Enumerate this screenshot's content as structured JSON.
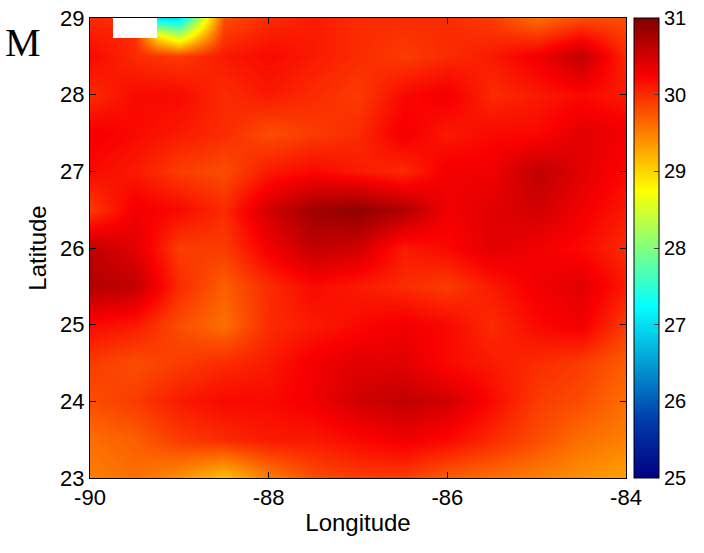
{
  "chart_data": {
    "type": "heatmap",
    "panel_label": "M",
    "x_label": "Longitude",
    "y_label": "Latitude",
    "x": [
      -90,
      -89.5,
      -89,
      -88.5,
      -88,
      -87.5,
      -87,
      -86.5,
      -86,
      -85.5,
      -85,
      -84.5,
      -84
    ],
    "y": [
      23,
      23.5,
      24,
      24.5,
      25,
      25.5,
      26,
      26.5,
      27,
      27.5,
      28,
      28.5,
      29
    ],
    "cells": [
      [
        29.5,
        29.6,
        29.4,
        29.1,
        29.5,
        29.8,
        29.9,
        29.9,
        29.7,
        29.6,
        29.5,
        29.4,
        29.3
      ],
      [
        29.6,
        29.7,
        29.9,
        30.0,
        30.1,
        30.1,
        30.2,
        30.3,
        30.2,
        30.0,
        29.8,
        29.6,
        29.5
      ],
      [
        29.8,
        29.9,
        30.1,
        30.2,
        30.2,
        30.3,
        30.5,
        30.6,
        30.5,
        30.2,
        29.9,
        29.8,
        29.6
      ],
      [
        29.9,
        29.8,
        29.9,
        30.0,
        30.1,
        30.3,
        30.4,
        30.4,
        30.2,
        30.1,
        30.0,
        29.9,
        29.7
      ],
      [
        30.2,
        30.1,
        29.8,
        29.6,
        30.0,
        30.1,
        30.2,
        30.3,
        30.2,
        30.0,
        30.2,
        30.3,
        29.9
      ],
      [
        30.7,
        30.6,
        30.0,
        29.7,
        30.0,
        30.2,
        30.1,
        30.0,
        29.9,
        30.1,
        30.3,
        30.4,
        30.1
      ],
      [
        30.6,
        30.4,
        29.9,
        29.9,
        30.3,
        30.6,
        30.5,
        30.1,
        30.2,
        30.4,
        30.3,
        30.2,
        30.0
      ],
      [
        29.9,
        30.3,
        30.2,
        30.0,
        30.5,
        30.8,
        30.9,
        30.7,
        30.3,
        30.4,
        30.5,
        30.3,
        30.1
      ],
      [
        30.2,
        30.1,
        29.9,
        29.8,
        30.1,
        30.2,
        30.1,
        30.0,
        30.3,
        30.3,
        30.6,
        30.4,
        30.2
      ],
      [
        30.3,
        30.2,
        30.1,
        30.0,
        29.8,
        29.9,
        30.0,
        30.3,
        30.1,
        30.2,
        30.2,
        30.4,
        30.3
      ],
      [
        30.0,
        30.2,
        30.2,
        30.0,
        30.1,
        30.0,
        29.9,
        30.2,
        30.3,
        30.0,
        30.1,
        30.2,
        30.1
      ],
      [
        30.2,
        30.0,
        29.9,
        30.1,
        30.2,
        30.1,
        30.0,
        29.9,
        30.0,
        30.1,
        30.3,
        30.6,
        30.0
      ],
      [
        30.0,
        null,
        27.0,
        29.8,
        30.0,
        30.1,
        30.0,
        30.0,
        30.0,
        29.9,
        29.6,
        29.8,
        29.8
      ]
    ],
    "xlim": [
      -90,
      -84
    ],
    "xticks": [
      -90,
      -88,
      -86,
      -84
    ],
    "ylim": [
      23,
      29
    ],
    "yticks": [
      23,
      24,
      25,
      26,
      27,
      28,
      29
    ],
    "colorbar": {
      "range": [
        25,
        31
      ],
      "ticks": [
        25,
        26,
        27,
        28,
        29,
        30,
        31
      ]
    }
  }
}
